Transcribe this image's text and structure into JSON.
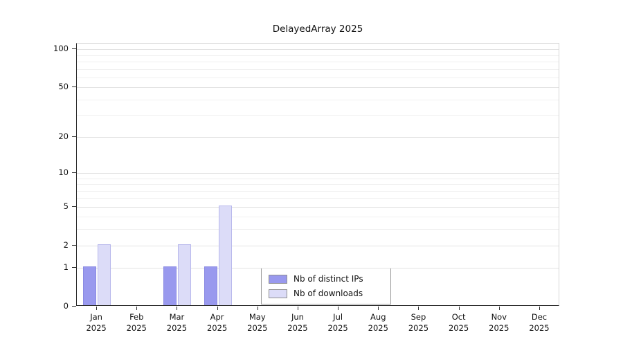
{
  "chart_data": {
    "type": "bar",
    "title": "DelayedArray 2025",
    "year_label": "2025",
    "categories": [
      "Jan",
      "Feb",
      "Mar",
      "Apr",
      "May",
      "Jun",
      "Jul",
      "Aug",
      "Sep",
      "Oct",
      "Nov",
      "Dec"
    ],
    "series": [
      {
        "name": "Nb of distinct IPs",
        "color": "#9999ee",
        "border_color": "#8a8ae2",
        "values": [
          1,
          0,
          1,
          1,
          0,
          0,
          0,
          0,
          0,
          0,
          0,
          0
        ]
      },
      {
        "name": "Nb of downloads",
        "color": "#dcdcf8",
        "border_color": "#b8b8ec",
        "values": [
          2,
          0,
          2,
          5,
          0,
          0,
          0,
          0,
          0,
          0,
          0,
          0
        ]
      }
    ],
    "y_ticks": [
      0,
      1,
      2,
      5,
      10,
      20,
      50,
      100
    ],
    "y_grid_major": [
      1,
      2,
      5,
      10,
      20,
      50,
      100
    ],
    "y_grid_minor": [
      3,
      4,
      6,
      7,
      8,
      9,
      30,
      40,
      60,
      70,
      80,
      90
    ],
    "y_scale": "log1p",
    "ylim": [
      0,
      111
    ],
    "xlabel": "",
    "ylabel": "",
    "grid": true,
    "legend": {
      "position": "inside-bottom-center",
      "items": [
        "Nb of distinct IPs",
        "Nb of downloads"
      ]
    },
    "colors": {
      "background": "#ffffff",
      "axis": "#2b2b2b",
      "grid_major": "#e2e2e2",
      "grid_minor": "#f0f0f0"
    }
  }
}
